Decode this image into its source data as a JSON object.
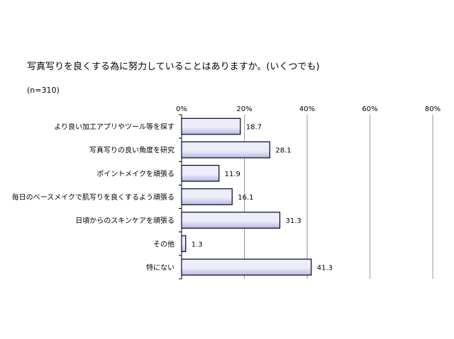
{
  "chart_data": {
    "type": "bar",
    "orientation": "horizontal",
    "title": "写真写りを良くする為に努力していることはありますか。(いくつでも)",
    "subtitle": "(n=310)",
    "categories": [
      "より良い加工アプリやツール等を探す",
      "写真写りの良い角度を研究",
      "ポイントメイクを頑張る",
      "毎日のベースメイクで肌写りを良くするよう頑張る",
      "日頃からのスキンケアを頑張る",
      "その他",
      "特にない"
    ],
    "values": [
      18.7,
      28.1,
      11.9,
      16.1,
      31.3,
      1.3,
      41.3
    ],
    "value_labels": [
      "18.7",
      "28.1",
      "11.9",
      "16.1",
      "31.3",
      "1.3",
      "41.3"
    ],
    "xlim": [
      0,
      80
    ],
    "x_ticks": [
      "0%",
      "20%",
      "40%",
      "60%",
      "80%"
    ],
    "grid": true,
    "legend": "none",
    "colors": {
      "bar_fill_light": "#eeeef8",
      "bar_fill_dark": "#b8b8e0",
      "bar_stroke": "#000033",
      "grid": "#808080"
    }
  }
}
